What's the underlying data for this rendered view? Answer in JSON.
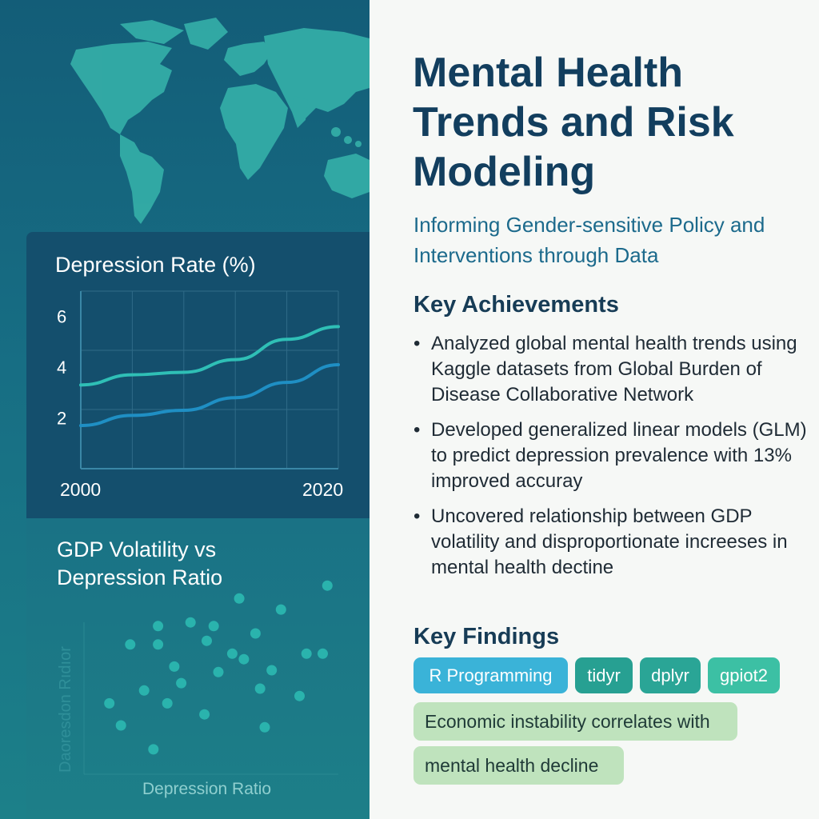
{
  "header": {
    "title": "Mental Health Trends and Risk Modeling",
    "subtitle": "Informing Gender-sensitive Policy and Interventions through Data"
  },
  "achievements": {
    "heading": "Key Achievements",
    "items": [
      "Analyzed global mental health trends using Kaggle datasets from Global Burden of Disease Collaborative Network",
      "Developed generalized linear models (GLM) to predict depression prevalence with 13% improved accuray",
      "Uncovered relationship between GDP volatility and disproportionate increeses in mental health dectine"
    ]
  },
  "findings": {
    "heading": "Key Findings",
    "tags": [
      "R Programming",
      "tidyr",
      "dplyr",
      "gpiot2"
    ],
    "statements": [
      "Economic instability correlates with",
      "mental health decline"
    ]
  },
  "colors": {
    "tag_r": "#3ab3d8",
    "tag_tidyr": "#27a092",
    "tag_dplyr": "#2aa596",
    "tag_ggplot": "#3cc0a4",
    "line_upper": "#2fbfb6",
    "line_lower": "#1f8fc4",
    "scatter": "#2ab3ad"
  },
  "chart_data": [
    {
      "type": "line",
      "title": "Depression Rate (%)",
      "x_tick_labels": [
        "2000",
        "2020"
      ],
      "y_tick_labels": [
        "6",
        "4",
        "2"
      ],
      "xlim": [
        2000,
        2020
      ],
      "ylim": [
        0,
        7
      ],
      "grid": true,
      "series": [
        {
          "x": [
            2000,
            2004,
            2008,
            2012,
            2016,
            2020
          ],
          "values": [
            3.3,
            3.7,
            3.8,
            4.3,
            5.1,
            5.6
          ]
        },
        {
          "x": [
            2000,
            2004,
            2008,
            2012,
            2016,
            2020
          ],
          "values": [
            1.7,
            2.1,
            2.3,
            2.8,
            3.4,
            4.1
          ]
        }
      ]
    },
    {
      "type": "scatter",
      "title": "GDP Volatility vs Depression Ratio",
      "xlabel": "Depression Ratio",
      "ylabel": "Daoresdon Rıdıor",
      "xlim": [
        0,
        10
      ],
      "ylim": [
        0,
        10
      ],
      "grid": false,
      "points": [
        [
          0.3,
          3.2
        ],
        [
          0.8,
          2.0
        ],
        [
          1.2,
          6.4
        ],
        [
          1.8,
          3.9
        ],
        [
          2.2,
          0.7
        ],
        [
          2.4,
          7.4
        ],
        [
          2.4,
          6.4
        ],
        [
          2.8,
          3.2
        ],
        [
          3.1,
          5.2
        ],
        [
          3.4,
          4.3
        ],
        [
          3.8,
          7.6
        ],
        [
          4.4,
          2.6
        ],
        [
          4.5,
          6.6
        ],
        [
          4.8,
          7.4
        ],
        [
          5.0,
          4.9
        ],
        [
          5.6,
          5.9
        ],
        [
          5.9,
          8.9
        ],
        [
          6.1,
          5.6
        ],
        [
          6.6,
          7.0
        ],
        [
          6.8,
          4.0
        ],
        [
          7.0,
          1.9
        ],
        [
          7.3,
          5.0
        ],
        [
          7.7,
          8.3
        ],
        [
          8.5,
          3.6
        ],
        [
          8.8,
          5.9
        ],
        [
          9.5,
          5.9
        ],
        [
          9.7,
          9.6
        ]
      ]
    }
  ]
}
